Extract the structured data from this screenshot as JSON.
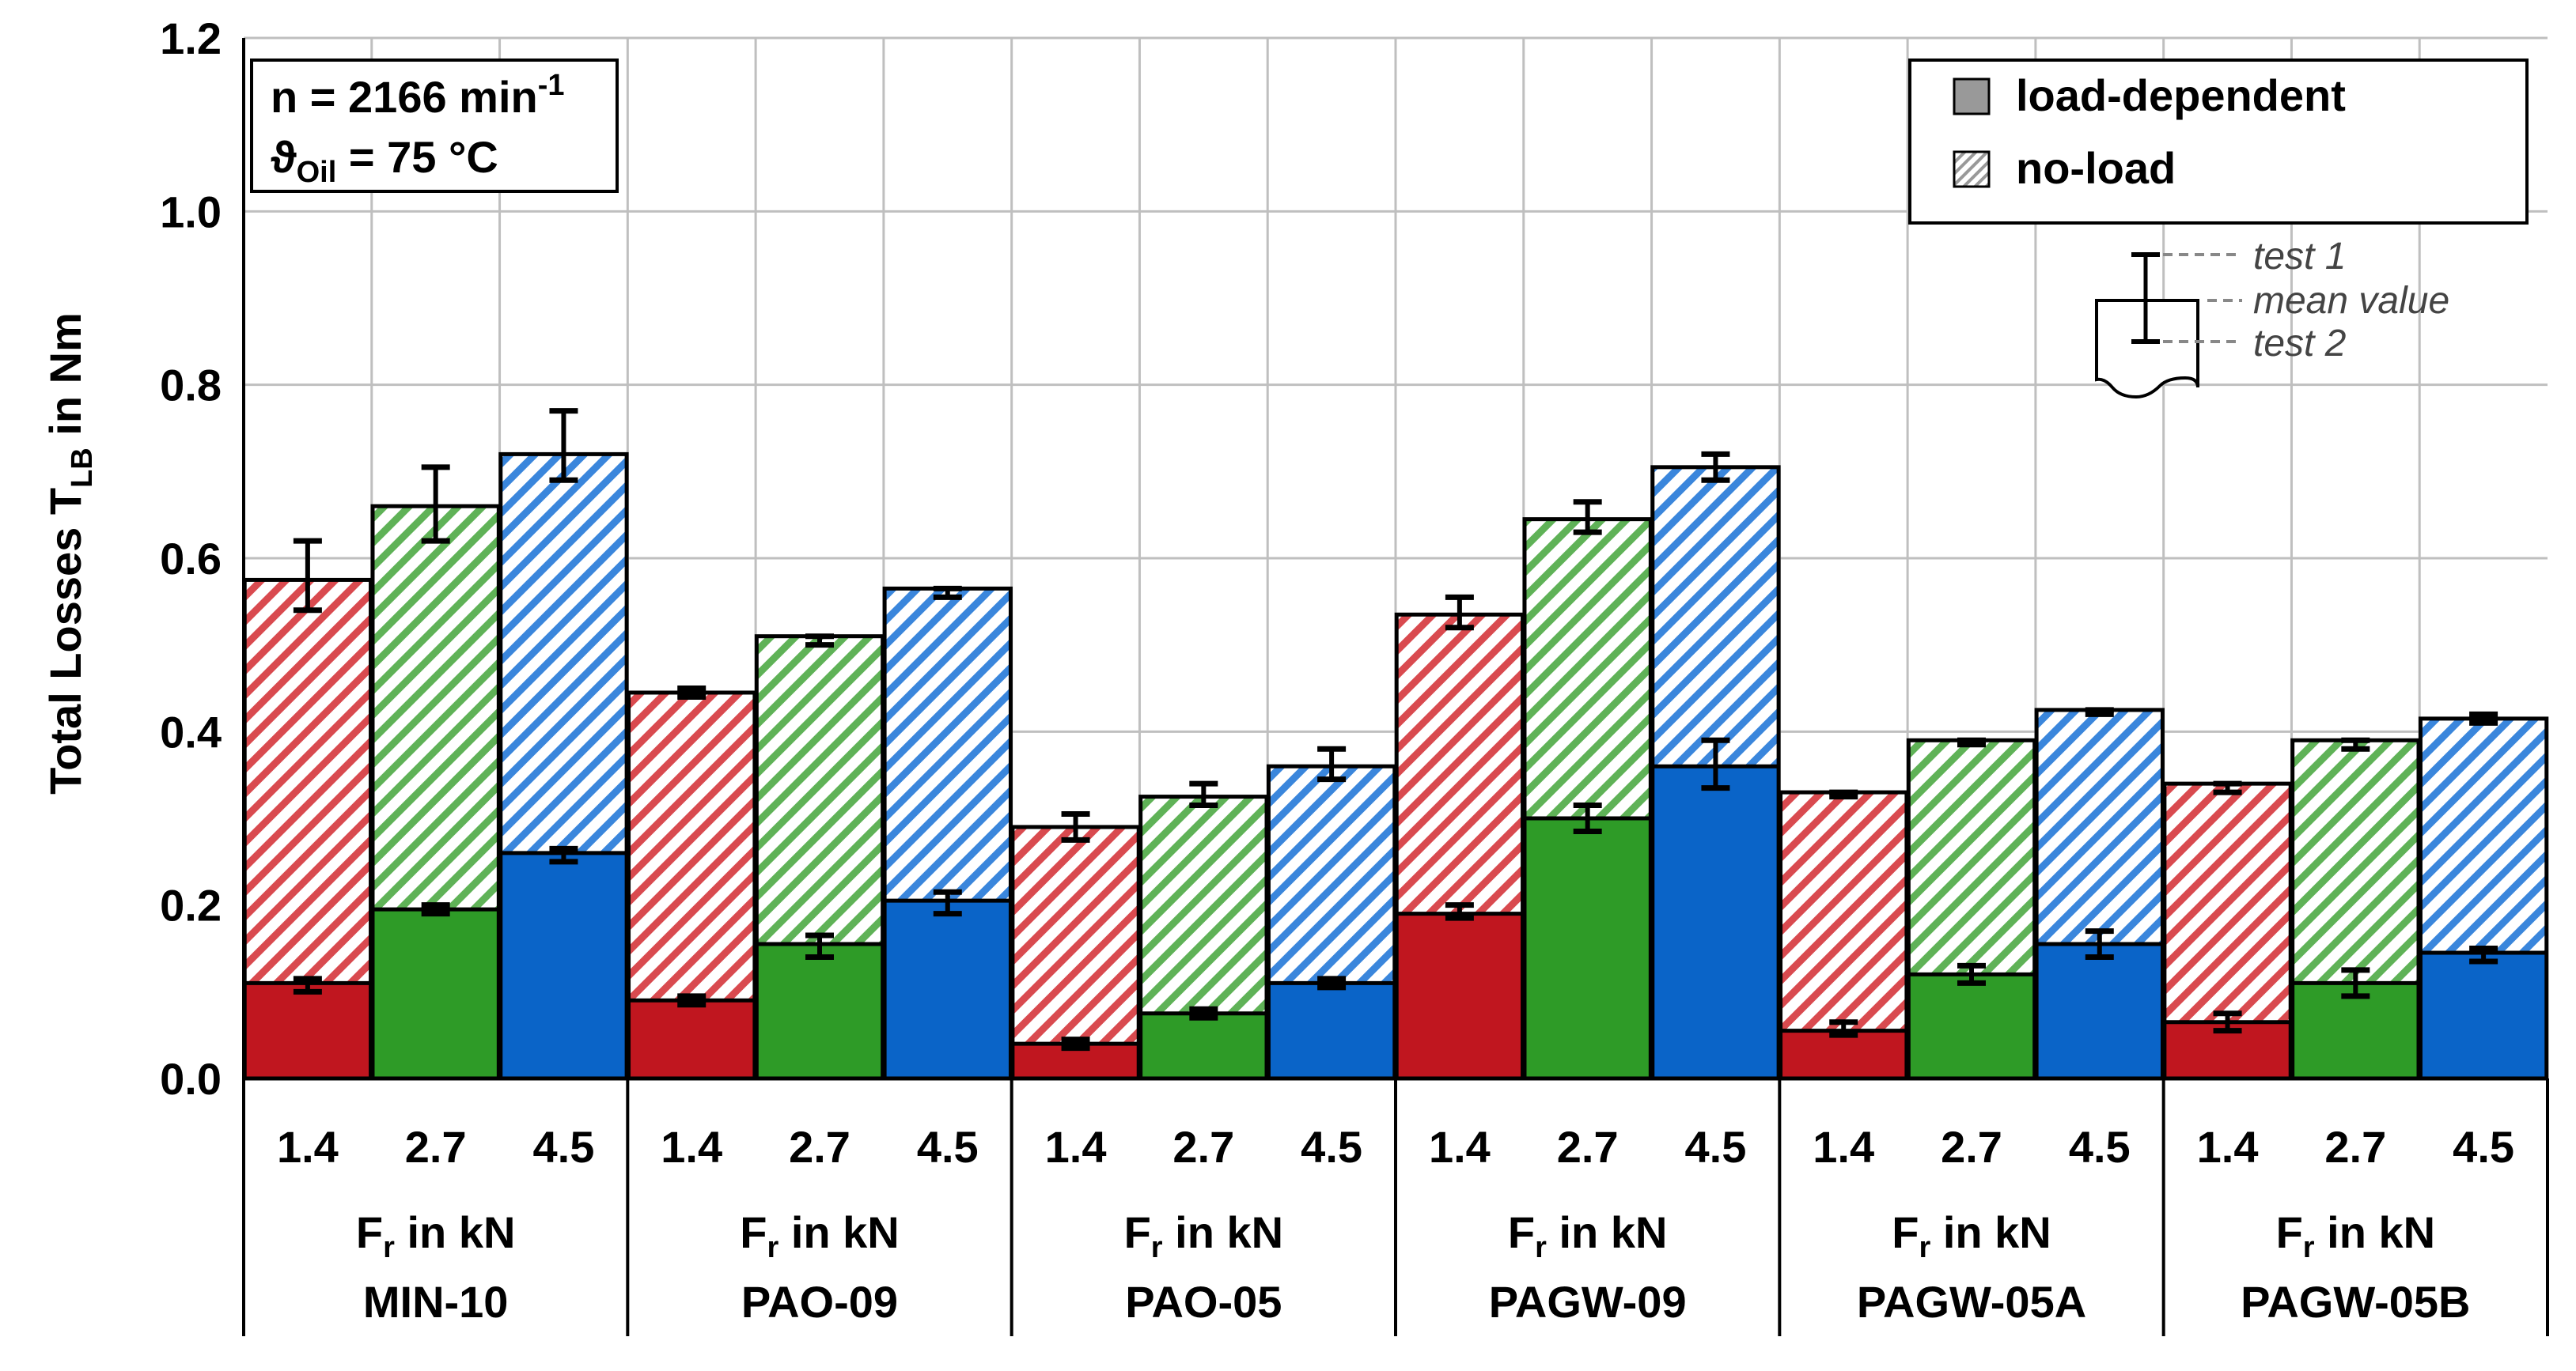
{
  "chart_data": {
    "type": "bar",
    "stacked": true,
    "ylabel_main": "Total Losses  T",
    "ylabel_sub": "LB",
    "ylabel_tail": " in Nm",
    "ylim": [
      0,
      1.2
    ],
    "yticks": [
      "0.0",
      "0.2",
      "0.4",
      "0.6",
      "0.8",
      "1.0",
      "1.2"
    ],
    "grid": true,
    "x_unit_main": "F",
    "x_unit_sub": "r",
    "x_unit_tail": " in kN",
    "loads": [
      "1.4",
      "2.7",
      "4.5"
    ],
    "groups": [
      {
        "name": "MIN-10",
        "load_dependent": [
          0.11,
          0.195,
          0.26
        ],
        "no_load": [
          0.465,
          0.465,
          0.46
        ],
        "error_lo": [
          0.54,
          0.62,
          0.69
        ],
        "error_hi": [
          0.62,
          0.705,
          0.77
        ],
        "ld_err_lo": [
          0.1,
          0.19,
          0.25
        ],
        "ld_err_hi": [
          0.115,
          0.2,
          0.265
        ]
      },
      {
        "name": "PAO-09",
        "load_dependent": [
          0.09,
          0.155,
          0.205
        ],
        "no_load": [
          0.355,
          0.355,
          0.36
        ],
        "error_lo": [
          0.44,
          0.5,
          0.555
        ],
        "error_hi": [
          0.45,
          0.51,
          0.565
        ],
        "ld_err_lo": [
          0.085,
          0.14,
          0.19
        ],
        "ld_err_hi": [
          0.095,
          0.165,
          0.215
        ]
      },
      {
        "name": "PAO-05",
        "load_dependent": [
          0.04,
          0.075,
          0.11
        ],
        "no_load": [
          0.25,
          0.25,
          0.25
        ],
        "error_lo": [
          0.275,
          0.315,
          0.345
        ],
        "error_hi": [
          0.305,
          0.34,
          0.38
        ],
        "ld_err_lo": [
          0.035,
          0.07,
          0.105
        ],
        "ld_err_hi": [
          0.045,
          0.08,
          0.115
        ]
      },
      {
        "name": "PAGW-09",
        "load_dependent": [
          0.19,
          0.3,
          0.36
        ],
        "no_load": [
          0.345,
          0.345,
          0.345
        ],
        "error_lo": [
          0.52,
          0.63,
          0.69
        ],
        "error_hi": [
          0.555,
          0.665,
          0.72
        ],
        "ld_err_lo": [
          0.185,
          0.285,
          0.335
        ],
        "ld_err_hi": [
          0.2,
          0.315,
          0.39
        ]
      },
      {
        "name": "PAGW-05A",
        "load_dependent": [
          0.055,
          0.12,
          0.155
        ],
        "no_load": [
          0.275,
          0.27,
          0.27
        ],
        "error_lo": [
          0.325,
          0.385,
          0.42
        ],
        "error_hi": [
          0.33,
          0.39,
          0.425
        ],
        "ld_err_lo": [
          0.05,
          0.11,
          0.14
        ],
        "ld_err_hi": [
          0.065,
          0.13,
          0.17
        ]
      },
      {
        "name": "PAGW-05B",
        "load_dependent": [
          0.065,
          0.11,
          0.145
        ],
        "no_load": [
          0.275,
          0.28,
          0.27
        ],
        "error_lo": [
          0.33,
          0.38,
          0.41
        ],
        "error_hi": [
          0.34,
          0.39,
          0.42
        ],
        "ld_err_lo": [
          0.055,
          0.095,
          0.135
        ],
        "ld_err_hi": [
          0.075,
          0.125,
          0.15
        ]
      }
    ],
    "colors": {
      "1.4": "#c0161f",
      "2.7": "#2e9b27",
      "4.5": "#0a64c8"
    },
    "legend": {
      "placement": "top-right",
      "entries": [
        "load-dependent",
        "no-load"
      ]
    },
    "info_box": {
      "line1_main": "n = 2166  min",
      "line1_sup": "-1",
      "line2_main": "ϑ",
      "line2_sub": "Oil",
      "line2_tail": " = 75 °C"
    },
    "error_key": {
      "test1": "test 1",
      "mean": "mean value",
      "test2": "test 2"
    }
  }
}
